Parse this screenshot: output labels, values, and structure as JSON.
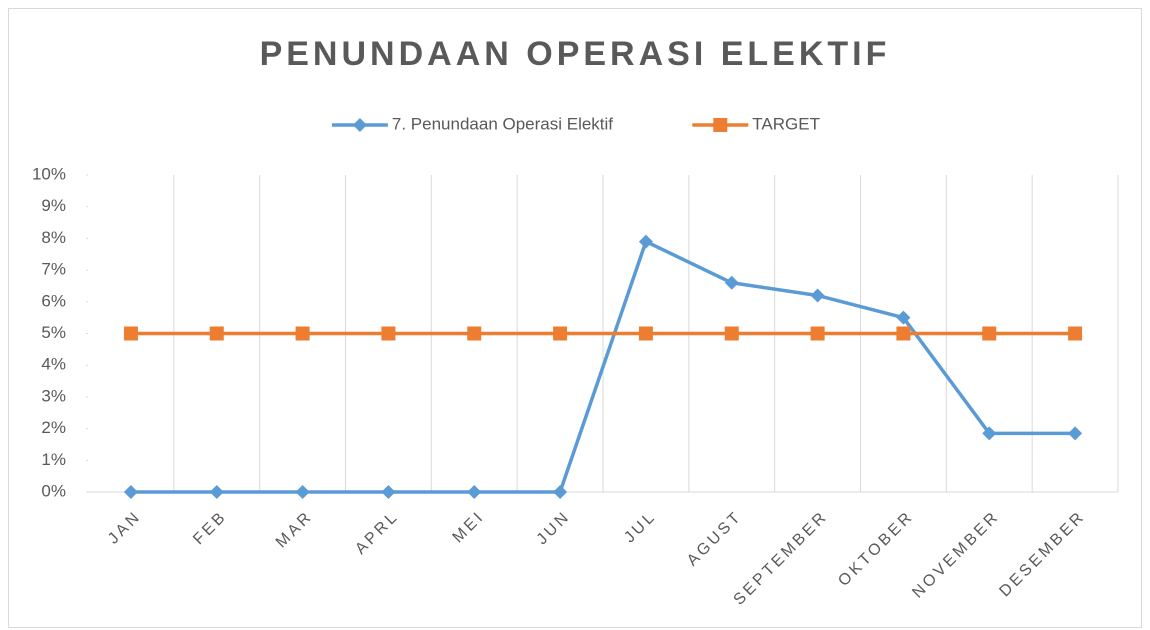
{
  "chart_data": {
    "type": "line",
    "title": "PENUNDAAN OPERASI ELEKTIF",
    "categories": [
      "JAN",
      "FEB",
      "MAR",
      "APRL",
      "MEI",
      "JUN",
      "JUL",
      "AGUST",
      "SEPTEMBER",
      "OKTOBER",
      "NOVEMBER",
      "DESEMBER"
    ],
    "series": [
      {
        "name": "7. Penundaan Operasi Elektif",
        "color": "#5b9bd5",
        "marker": "diamond",
        "values": [
          0,
          0,
          0,
          0,
          0,
          0,
          7.9,
          6.6,
          6.2,
          5.5,
          1.85,
          1.85
        ]
      },
      {
        "name": "TARGET",
        "color": "#ed7d31",
        "marker": "square",
        "values": [
          5,
          5,
          5,
          5,
          5,
          5,
          5,
          5,
          5,
          5,
          5,
          5
        ]
      }
    ],
    "ylim": [
      0,
      10
    ],
    "yticks": [
      {
        "value": 0,
        "label": "0%"
      },
      {
        "value": 1,
        "label": "1%"
      },
      {
        "value": 2,
        "label": "2%"
      },
      {
        "value": 3,
        "label": "3%"
      },
      {
        "value": 4,
        "label": "4%"
      },
      {
        "value": 5,
        "label": "5%"
      },
      {
        "value": 6,
        "label": "6%"
      },
      {
        "value": 7,
        "label": "7%"
      },
      {
        "value": 8,
        "label": "8%"
      },
      {
        "value": 9,
        "label": "9%"
      },
      {
        "value": 10,
        "label": "10%"
      }
    ],
    "legend": "top",
    "grid": "vertical"
  }
}
